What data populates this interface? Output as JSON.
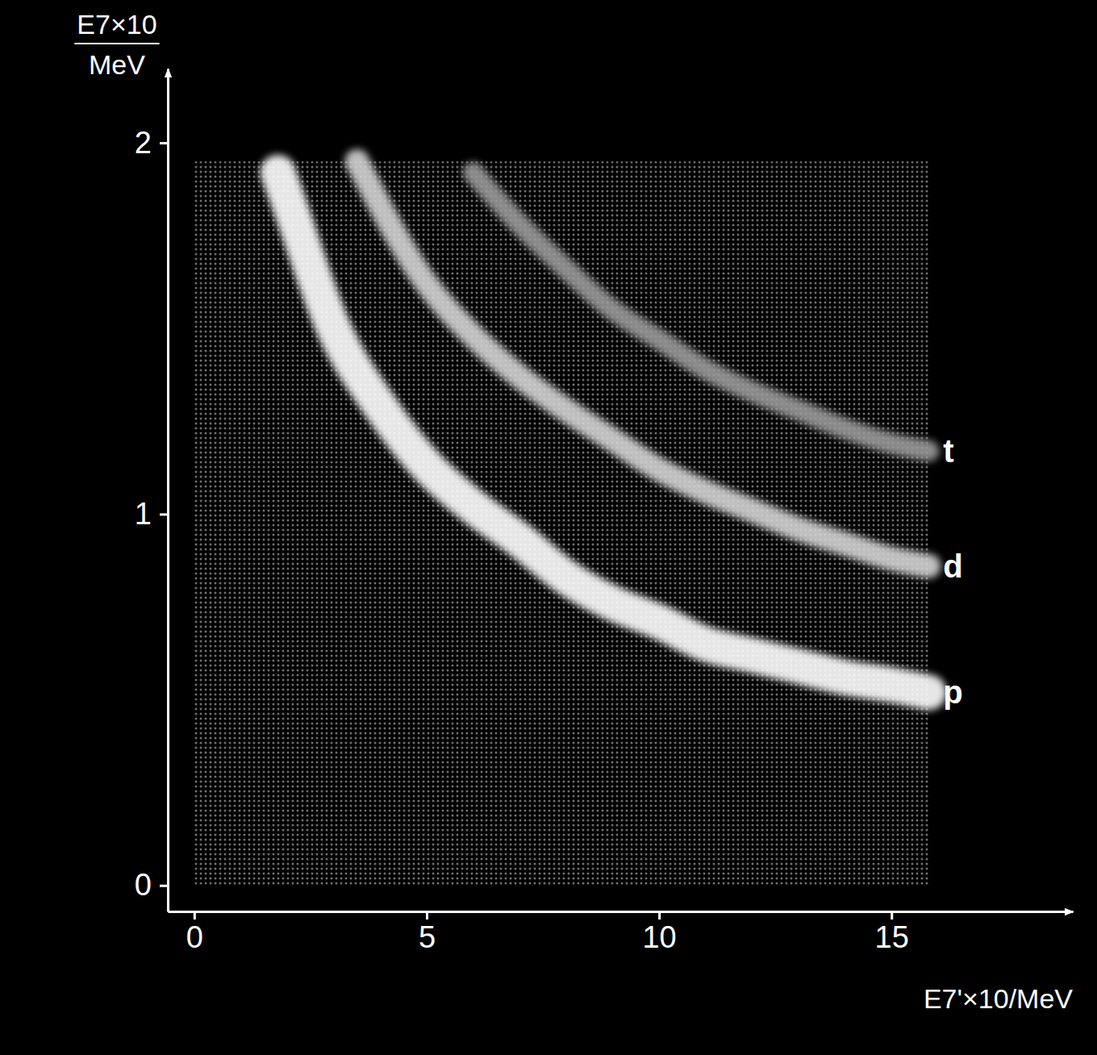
{
  "chart_data": {
    "type": "line",
    "y_label": [
      "E7×10",
      "MeV"
    ],
    "x_label": "E7'×10/MeV",
    "xlim": [
      -0.57,
      18.9
    ],
    "ylim": [
      -0.07,
      2.2
    ],
    "xticks": [
      0,
      5,
      10,
      15
    ],
    "yticks": [
      0,
      1,
      2
    ],
    "grid": false,
    "data_labels": false,
    "series": [
      {
        "name": "p",
        "color": "#ffffff",
        "line_style": "solid",
        "x": [
          1.8,
          2.0,
          3,
          4,
          5,
          6,
          7,
          8,
          9,
          10,
          11,
          12,
          13,
          14,
          15,
          15.8
        ],
        "values": [
          1.92,
          1.85,
          1.5,
          1.29,
          1.13,
          1.02,
          0.93,
          0.83,
          0.76,
          0.71,
          0.65,
          0.62,
          0.59,
          0.56,
          0.54,
          0.52
        ]
      },
      {
        "name": "d",
        "color": "#d4d4d4",
        "line_style": "solid",
        "x": [
          3.5,
          5,
          6,
          7,
          8,
          9,
          10,
          11,
          12,
          13,
          14,
          15,
          15.8
        ],
        "values": [
          1.95,
          1.62,
          1.48,
          1.37,
          1.28,
          1.2,
          1.12,
          1.06,
          1.01,
          0.96,
          0.92,
          0.88,
          0.86
        ]
      },
      {
        "name": "t",
        "color": "#9a9a9a",
        "line_style": "solid",
        "x": [
          6,
          7,
          8,
          9,
          10,
          11,
          12,
          13,
          14,
          15,
          15.8
        ],
        "values": [
          1.92,
          1.78,
          1.66,
          1.55,
          1.47,
          1.39,
          1.33,
          1.28,
          1.23,
          1.19,
          1.17
        ]
      }
    ]
  }
}
